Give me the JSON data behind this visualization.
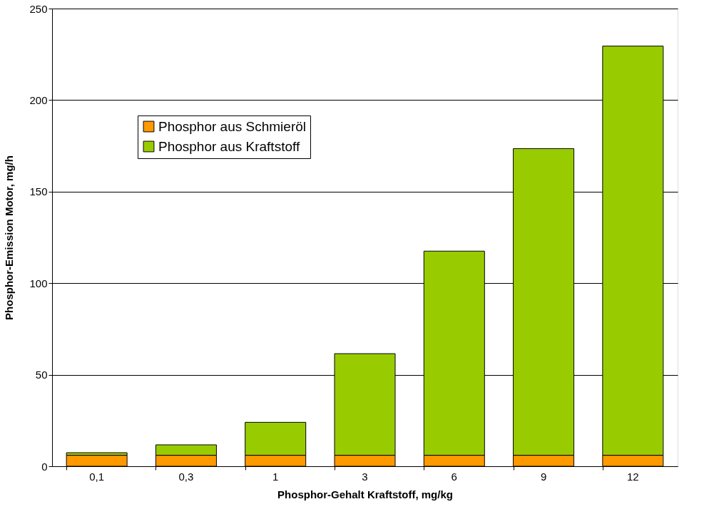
{
  "chart_data": {
    "type": "bar",
    "stacked": true,
    "xlabel": "Phosphor-Gehalt Kraftstoff, mg/kg",
    "ylabel": "Phosphor-Emission Motor, mg/h",
    "categories": [
      "0,1",
      "0,3",
      "1",
      "3",
      "6",
      "9",
      "12"
    ],
    "series": [
      {
        "name": "Phosphor aus Schmieröl",
        "color": "#ff9900",
        "values": [
          6,
          6,
          6,
          6,
          6,
          6,
          6
        ]
      },
      {
        "name": "Phosphor aus Kraftstoff",
        "color": "#99cc00",
        "values": [
          1.4,
          5.7,
          18,
          55.5,
          111.5,
          167.5,
          223.5
        ]
      }
    ],
    "ylim": [
      0,
      250
    ],
    "yticks": [
      0,
      50,
      100,
      150,
      200,
      250
    ],
    "grid": "y",
    "legend": "top left"
  }
}
